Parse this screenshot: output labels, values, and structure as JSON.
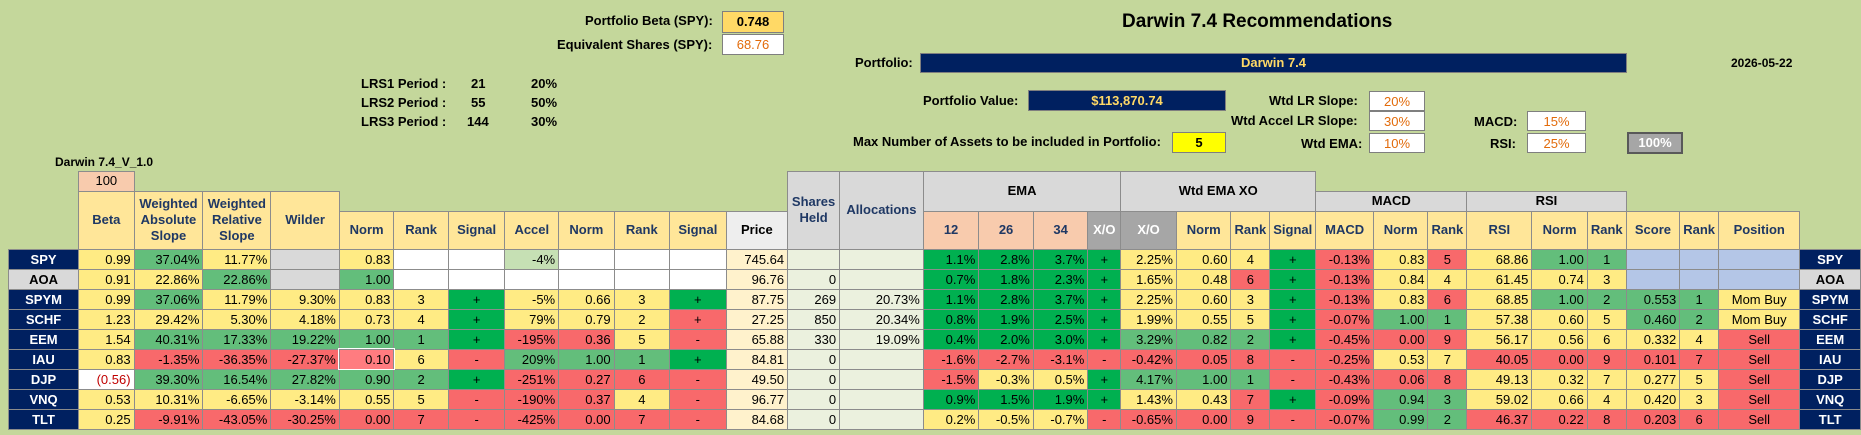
{
  "header": {
    "portfolio_beta_label": "Portfolio Beta (SPY):",
    "portfolio_beta_value": "0.748",
    "equiv_shares_label": "Equivalent Shares (SPY):",
    "equiv_shares_value": "68.76",
    "title": "Darwin 7.4 Recommendations",
    "portfolio_label": "Portfolio:",
    "portfolio_value": "Darwin 7.4",
    "date": "2026-05-22",
    "portfolio_value_label": "Portfolio Value:",
    "portfolio_value_amount": "$113,870.74",
    "max_assets_label": "Max Number of Assets to be included in Portfolio:",
    "max_assets_value": "5",
    "version": "Darwin 7.4_V_1.0"
  },
  "lrs": [
    {
      "label": "LRS1 Period :",
      "period": "21",
      "pct": "20%"
    },
    {
      "label": "LRS2 Period :",
      "period": "55",
      "pct": "50%"
    },
    {
      "label": "LRS3 Period :",
      "period": "144",
      "pct": "30%"
    }
  ],
  "weights": {
    "wtd_lr_slope_label": "Wtd LR Slope:",
    "wtd_lr_slope": "20%",
    "wtd_accel_label": "Wtd Accel LR Slope:",
    "wtd_accel": "30%",
    "wtd_ema_label": "Wtd EMA:",
    "wtd_ema": "10%",
    "macd_label": "MACD:",
    "macd": "15%",
    "rsi_label": "RSI:",
    "rsi": "25%",
    "total_button": "100%"
  },
  "columns": {
    "beta_top": "100",
    "beta": "Beta",
    "weighted_abs_slope": "Weighted Absolute Slope",
    "weighted_rel_slope": "Weighted Relative Slope",
    "wilder": "Wilder",
    "norm": "Norm",
    "rank": "Rank",
    "signal": "Signal",
    "accel": "Accel",
    "price": "Price",
    "shares_held": "Shares Held",
    "allocations": "Allocations",
    "ema": "EMA",
    "ema12": "12",
    "ema26": "26",
    "ema34": "34",
    "xo": "X/O",
    "wtd_ema_xo": "Wtd EMA XO",
    "macd_group": "MACD",
    "macd": "MACD",
    "rsi_group": "RSI",
    "rsi": "RSI",
    "score": "Score",
    "position": "Position"
  },
  "rows": [
    {
      "ticker": "SPY",
      "beta": "0.99",
      "abs": "37.04%",
      "rel": "11.77%",
      "wilder": "",
      "norm1": "0.83",
      "rank1": "",
      "sig1": "",
      "accel": "-4%",
      "norm2": "",
      "rank2": "",
      "sig2": "",
      "price": "745.64",
      "shares": "",
      "alloc": "",
      "e12": "1.1%",
      "e26": "2.8%",
      "e34": "3.7%",
      "xo": "+",
      "wxo": "2.25%",
      "norm3": "0.60",
      "rank3": "4",
      "sig3": "+",
      "macd": "-0.13%",
      "norm4": "0.83",
      "rank4": "5",
      "rsi": "68.86",
      "norm5": "1.00",
      "rank5": "1",
      "score": "",
      "rank6": "",
      "pos": ""
    },
    {
      "ticker": "AOA",
      "beta": "0.91",
      "abs": "22.86%",
      "rel": "22.86%",
      "wilder": "",
      "norm1": "1.00",
      "rank1": "",
      "sig1": "",
      "accel": "",
      "norm2": "",
      "rank2": "",
      "sig2": "",
      "price": "96.76",
      "shares": "0",
      "alloc": "",
      "e12": "0.7%",
      "e26": "1.8%",
      "e34": "2.3%",
      "xo": "+",
      "wxo": "1.65%",
      "norm3": "0.48",
      "rank3": "6",
      "sig3": "+",
      "macd": "-0.13%",
      "norm4": "0.84",
      "rank4": "4",
      "rsi": "61.45",
      "norm5": "0.74",
      "rank5": "3",
      "score": "",
      "rank6": "",
      "pos": ""
    },
    {
      "ticker": "SPYM",
      "beta": "0.99",
      "abs": "37.06%",
      "rel": "11.79%",
      "wilder": "9.30%",
      "norm1": "0.83",
      "rank1": "3",
      "sig1": "+",
      "accel": "-5%",
      "norm2": "0.66",
      "rank2": "3",
      "sig2": "+",
      "price": "87.75",
      "shares": "269",
      "alloc": "20.73%",
      "e12": "1.1%",
      "e26": "2.8%",
      "e34": "3.7%",
      "xo": "+",
      "wxo": "2.25%",
      "norm3": "0.60",
      "rank3": "3",
      "sig3": "+",
      "macd": "-0.13%",
      "norm4": "0.83",
      "rank4": "6",
      "rsi": "68.85",
      "norm5": "1.00",
      "rank5": "2",
      "score": "0.553",
      "rank6": "1",
      "pos": "Mom Buy"
    },
    {
      "ticker": "SCHF",
      "beta": "1.23",
      "abs": "29.42%",
      "rel": "5.30%",
      "wilder": "4.18%",
      "norm1": "0.73",
      "rank1": "4",
      "sig1": "+",
      "accel": "79%",
      "norm2": "0.79",
      "rank2": "2",
      "sig2": "+",
      "price": "27.25",
      "shares": "850",
      "alloc": "20.34%",
      "e12": "0.8%",
      "e26": "1.9%",
      "e34": "2.5%",
      "xo": "+",
      "wxo": "1.99%",
      "norm3": "0.55",
      "rank3": "5",
      "sig3": "+",
      "macd": "-0.07%",
      "norm4": "1.00",
      "rank4": "1",
      "rsi": "57.38",
      "norm5": "0.60",
      "rank5": "5",
      "score": "0.460",
      "rank6": "2",
      "pos": "Mom Buy"
    },
    {
      "ticker": "EEM",
      "beta": "1.54",
      "abs": "40.31%",
      "rel": "17.33%",
      "wilder": "19.22%",
      "norm1": "1.00",
      "rank1": "1",
      "sig1": "+",
      "accel": "-195%",
      "norm2": "0.36",
      "rank2": "5",
      "sig2": "-",
      "price": "65.88",
      "shares": "330",
      "alloc": "19.09%",
      "e12": "0.4%",
      "e26": "2.0%",
      "e34": "3.0%",
      "xo": "+",
      "wxo": "3.29%",
      "norm3": "0.82",
      "rank3": "2",
      "sig3": "+",
      "macd": "-0.45%",
      "norm4": "0.00",
      "rank4": "9",
      "rsi": "56.17",
      "norm5": "0.56",
      "rank5": "6",
      "score": "0.332",
      "rank6": "4",
      "pos": "Sell"
    },
    {
      "ticker": "IAU",
      "beta": "0.83",
      "abs": "-1.35%",
      "rel": "-36.35%",
      "wilder": "-27.37%",
      "norm1": "0.10",
      "rank1": "6",
      "sig1": "-",
      "accel": "209%",
      "norm2": "1.00",
      "rank2": "1",
      "sig2": "+",
      "price": "84.81",
      "shares": "0",
      "alloc": "",
      "e12": "-1.6%",
      "e26": "-2.7%",
      "e34": "-3.1%",
      "xo": "-",
      "wxo": "-0.42%",
      "norm3": "0.05",
      "rank3": "8",
      "sig3": "-",
      "macd": "-0.25%",
      "norm4": "0.53",
      "rank4": "7",
      "rsi": "40.05",
      "norm5": "0.00",
      "rank5": "9",
      "score": "0.101",
      "rank6": "7",
      "pos": "Sell"
    },
    {
      "ticker": "DJP",
      "beta": "(0.56)",
      "abs": "39.30%",
      "rel": "16.54%",
      "wilder": "27.82%",
      "norm1": "0.90",
      "rank1": "2",
      "sig1": "+",
      "accel": "-251%",
      "norm2": "0.27",
      "rank2": "6",
      "sig2": "-",
      "price": "49.50",
      "shares": "0",
      "alloc": "",
      "e12": "-1.5%",
      "e26": "-0.3%",
      "e34": "0.5%",
      "xo": "+",
      "wxo": "4.17%",
      "norm3": "1.00",
      "rank3": "1",
      "sig3": "-",
      "macd": "-0.43%",
      "norm4": "0.06",
      "rank4": "8",
      "rsi": "49.13",
      "norm5": "0.32",
      "rank5": "7",
      "score": "0.277",
      "rank6": "5",
      "pos": "Sell"
    },
    {
      "ticker": "VNQ",
      "beta": "0.53",
      "abs": "10.31%",
      "rel": "-6.65%",
      "wilder": "-3.14%",
      "norm1": "0.55",
      "rank1": "5",
      "sig1": "-",
      "accel": "-190%",
      "norm2": "0.37",
      "rank2": "4",
      "sig2": "-",
      "price": "96.77",
      "shares": "0",
      "alloc": "",
      "e12": "0.9%",
      "e26": "1.5%",
      "e34": "1.9%",
      "xo": "+",
      "wxo": "1.43%",
      "norm3": "0.43",
      "rank3": "7",
      "sig3": "+",
      "macd": "-0.09%",
      "norm4": "0.94",
      "rank4": "3",
      "rsi": "59.02",
      "norm5": "0.66",
      "rank5": "4",
      "score": "0.420",
      "rank6": "3",
      "pos": "Sell"
    },
    {
      "ticker": "TLT",
      "beta": "0.25",
      "abs": "-9.91%",
      "rel": "-43.05%",
      "wilder": "-30.25%",
      "norm1": "0.00",
      "rank1": "7",
      "sig1": "-",
      "accel": "-425%",
      "norm2": "0.00",
      "rank2": "7",
      "sig2": "-",
      "price": "84.68",
      "shares": "0",
      "alloc": "",
      "e12": "0.2%",
      "e26": "-0.5%",
      "e34": "-0.7%",
      "xo": "-",
      "wxo": "-0.65%",
      "norm3": "0.00",
      "rank3": "9",
      "sig3": "-",
      "macd": "-0.07%",
      "norm4": "0.99",
      "rank4": "2",
      "rsi": "46.37",
      "norm5": "0.22",
      "rank5": "8",
      "score": "0.203",
      "rank6": "6",
      "pos": "Sell"
    }
  ]
}
